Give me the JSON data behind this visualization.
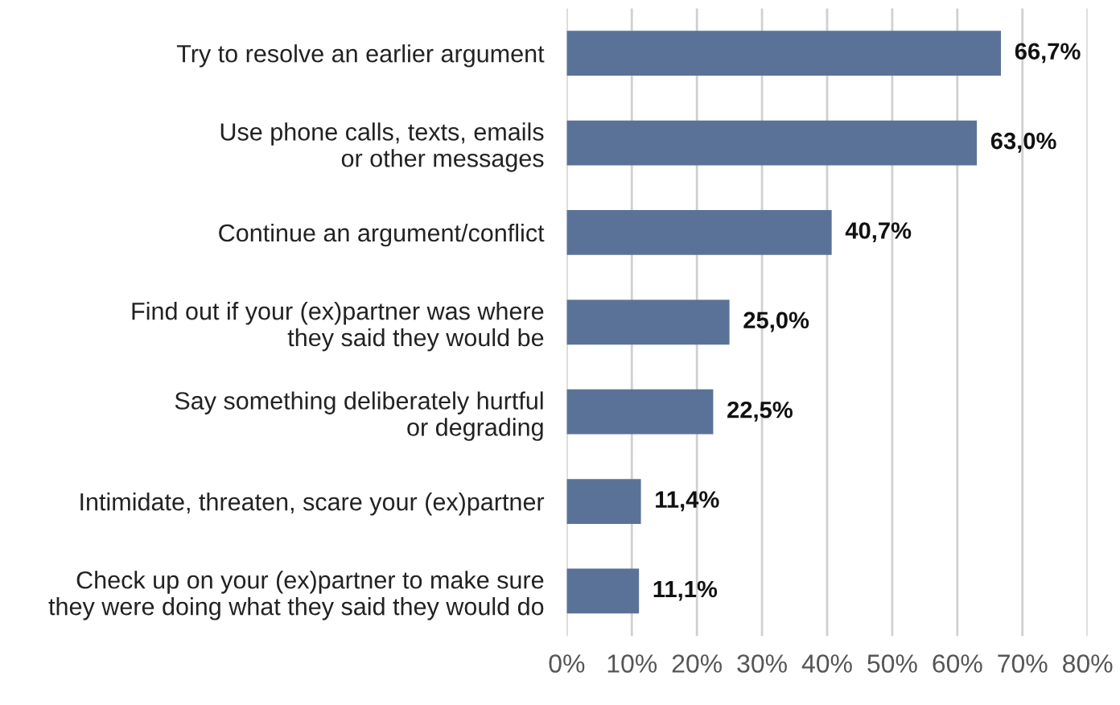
{
  "chart_data": {
    "type": "bar",
    "orientation": "horizontal",
    "categories": [
      "Try to resolve an earlier argument",
      "Use phone calls, texts, emails\nor other messages",
      "Continue an argument/conflict",
      "Find out if your (ex)partner was where\nthey said they would be",
      "Say something deliberately hurtful\nor degrading",
      "Intimidate, threaten, scare your (ex)partner",
      "Check up on your (ex)partner to make sure\nthey were doing what they said they would do"
    ],
    "values": [
      66.7,
      63.0,
      40.7,
      25.0,
      22.5,
      11.4,
      11.1
    ],
    "value_labels": [
      "66,7%",
      "63,0%",
      "40,7%",
      "25,0%",
      "22,5%",
      "11,4%",
      "11,1%"
    ],
    "color": "#5b7298",
    "xlim": [
      0,
      80
    ],
    "xticks": [
      {
        "value": 0,
        "label": "0%"
      },
      {
        "value": 10,
        "label": "10%"
      },
      {
        "value": 20,
        "label": "20%"
      },
      {
        "value": 30,
        "label": "30%"
      },
      {
        "value": 40,
        "label": "40%"
      },
      {
        "value": 50,
        "label": "50%"
      },
      {
        "value": 60,
        "label": "60%"
      },
      {
        "value": 70,
        "label": "70%"
      },
      {
        "value": 80,
        "label": "80%"
      }
    ],
    "grid": "x",
    "legend": false
  }
}
